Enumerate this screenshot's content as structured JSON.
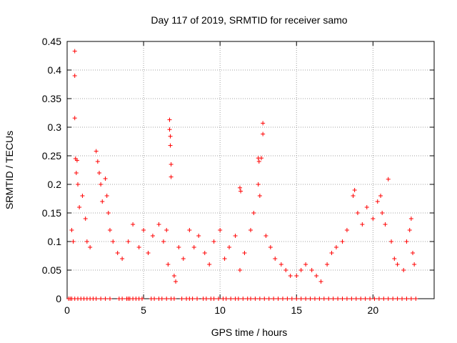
{
  "chart_data": {
    "type": "scatter",
    "title": "Day 117 of 2019, SRMTID for receiver samo",
    "xlabel": "GPS time / hours",
    "ylabel": "SRMTID / TECUs",
    "xlim": [
      0,
      24
    ],
    "ylim": [
      0,
      0.45
    ],
    "xticks": [
      0,
      5,
      10,
      15,
      20
    ],
    "yticks": [
      0,
      0.05,
      0.1,
      0.15,
      0.2,
      0.25,
      0.3,
      0.35,
      0.4,
      0.45
    ],
    "grid": true,
    "marker": "+",
    "marker_color": "#ff0000",
    "series": [
      {
        "name": "SRMTID",
        "points": [
          [
            0.5,
            0.433
          ],
          [
            0.5,
            0.39
          ],
          [
            0.5,
            0.316
          ],
          [
            0.55,
            0.245
          ],
          [
            0.65,
            0.242
          ],
          [
            0.6,
            0.22
          ],
          [
            0.7,
            0.2
          ],
          [
            0.3,
            0.12
          ],
          [
            0.4,
            0.1
          ],
          [
            0.8,
            0.16
          ],
          [
            1.0,
            0.18
          ],
          [
            1.2,
            0.14
          ],
          [
            1.3,
            0.1
          ],
          [
            1.5,
            0.09
          ],
          [
            1.9,
            0.258
          ],
          [
            2.0,
            0.24
          ],
          [
            2.1,
            0.22
          ],
          [
            2.2,
            0.2
          ],
          [
            2.3,
            0.17
          ],
          [
            2.5,
            0.21
          ],
          [
            2.6,
            0.18
          ],
          [
            2.7,
            0.15
          ],
          [
            2.8,
            0.12
          ],
          [
            3.0,
            0.1
          ],
          [
            3.3,
            0.08
          ],
          [
            3.6,
            0.07
          ],
          [
            4.0,
            0.1
          ],
          [
            4.3,
            0.13
          ],
          [
            4.7,
            0.09
          ],
          [
            5.0,
            0.12
          ],
          [
            5.3,
            0.08
          ],
          [
            5.6,
            0.11
          ],
          [
            6.0,
            0.13
          ],
          [
            6.3,
            0.1
          ],
          [
            6.5,
            0.12
          ],
          [
            6.6,
            0.06
          ],
          [
            6.7,
            0.313
          ],
          [
            6.7,
            0.296
          ],
          [
            6.75,
            0.284
          ],
          [
            6.75,
            0.268
          ],
          [
            6.8,
            0.235
          ],
          [
            6.8,
            0.213
          ],
          [
            7.0,
            0.04
          ],
          [
            7.1,
            0.03
          ],
          [
            7.3,
            0.09
          ],
          [
            7.6,
            0.07
          ],
          [
            8.0,
            0.12
          ],
          [
            8.3,
            0.09
          ],
          [
            8.6,
            0.11
          ],
          [
            9.0,
            0.08
          ],
          [
            9.3,
            0.06
          ],
          [
            9.6,
            0.1
          ],
          [
            10.0,
            0.12
          ],
          [
            10.3,
            0.07
          ],
          [
            10.6,
            0.09
          ],
          [
            11.0,
            0.11
          ],
          [
            11.3,
            0.05
          ],
          [
            11.6,
            0.08
          ],
          [
            11.3,
            0.194
          ],
          [
            11.35,
            0.188
          ],
          [
            12.0,
            0.12
          ],
          [
            12.2,
            0.15
          ],
          [
            12.5,
            0.246
          ],
          [
            12.55,
            0.24
          ],
          [
            12.5,
            0.2
          ],
          [
            12.6,
            0.18
          ],
          [
            12.8,
            0.307
          ],
          [
            12.8,
            0.288
          ],
          [
            12.7,
            0.246
          ],
          [
            13.0,
            0.11
          ],
          [
            13.3,
            0.09
          ],
          [
            13.6,
            0.07
          ],
          [
            14.0,
            0.06
          ],
          [
            14.3,
            0.05
          ],
          [
            14.6,
            0.04
          ],
          [
            15.0,
            0.04
          ],
          [
            15.3,
            0.05
          ],
          [
            15.6,
            0.06
          ],
          [
            16.0,
            0.05
          ],
          [
            16.3,
            0.04
          ],
          [
            16.6,
            0.03
          ],
          [
            17.0,
            0.06
          ],
          [
            17.3,
            0.08
          ],
          [
            17.6,
            0.09
          ],
          [
            18.0,
            0.1
          ],
          [
            18.3,
            0.12
          ],
          [
            18.7,
            0.18
          ],
          [
            18.8,
            0.19
          ],
          [
            19.0,
            0.15
          ],
          [
            19.3,
            0.13
          ],
          [
            19.6,
            0.16
          ],
          [
            20.0,
            0.14
          ],
          [
            20.3,
            0.17
          ],
          [
            20.5,
            0.18
          ],
          [
            20.6,
            0.15
          ],
          [
            20.8,
            0.13
          ],
          [
            21.0,
            0.209
          ],
          [
            21.2,
            0.1
          ],
          [
            21.4,
            0.07
          ],
          [
            21.6,
            0.06
          ],
          [
            22.0,
            0.05
          ],
          [
            22.2,
            0.1
          ],
          [
            22.4,
            0.12
          ],
          [
            22.5,
            0.14
          ],
          [
            22.6,
            0.08
          ],
          [
            22.7,
            0.06
          ]
        ],
        "zero_points_x": [
          0.1,
          0.2,
          0.3,
          0.5,
          0.7,
          0.9,
          1.1,
          1.3,
          1.5,
          1.7,
          1.9,
          2.2,
          2.5,
          2.8,
          3.4,
          3.6,
          3.9,
          4.0,
          4.1,
          4.3,
          4.5,
          4.7,
          4.9,
          5.5,
          5.7,
          6.0,
          6.2,
          6.5,
          6.8,
          7.0,
          7.5,
          7.8,
          8.0,
          8.2,
          8.5,
          8.9,
          9.1,
          9.4,
          9.6,
          9.9,
          10.2,
          10.4,
          10.7,
          11.0,
          11.2,
          11.5,
          11.8,
          12.0,
          12.3,
          12.6,
          12.9,
          13.2,
          13.5,
          13.8,
          14.1,
          14.4,
          14.7,
          15.0,
          15.3,
          15.6,
          15.9,
          16.2,
          16.5,
          16.8,
          17.1,
          17.4,
          17.7,
          18.0,
          18.3,
          18.6,
          18.9,
          19.2,
          19.5,
          19.8,
          20.1,
          20.4,
          20.7,
          21.0,
          21.3,
          21.6,
          21.9,
          22.2,
          22.5,
          22.8
        ]
      }
    ]
  }
}
